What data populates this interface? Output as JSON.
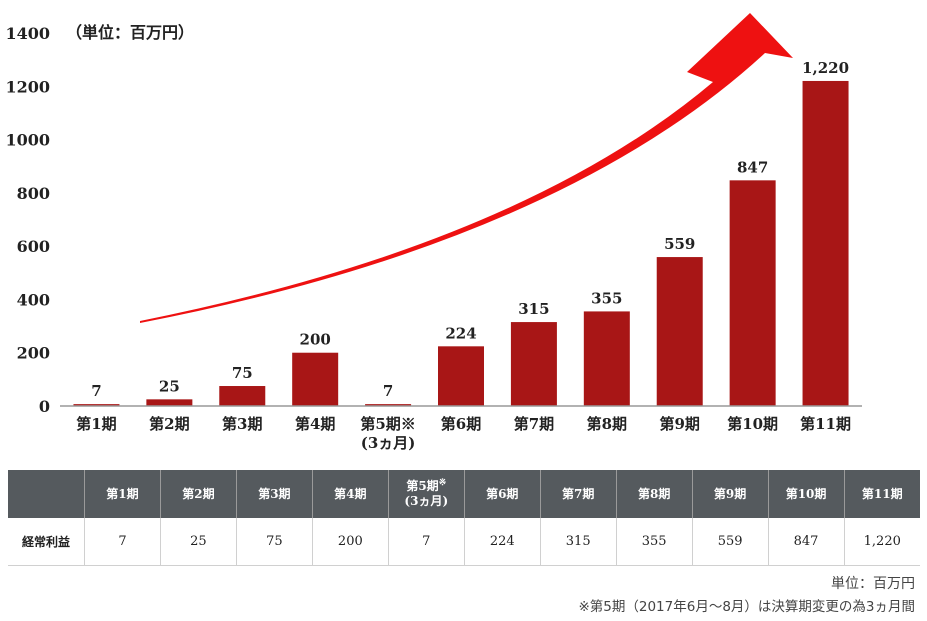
{
  "chart_data": {
    "type": "bar",
    "unit_label": "（単位：百万円）",
    "categories": [
      "第1期",
      "第2期",
      "第3期",
      "第4期",
      "第5期※\n(3ヵ月)",
      "第6期",
      "第7期",
      "第8期",
      "第9期",
      "第10期",
      "第11期"
    ],
    "values": [
      7,
      25,
      75,
      200,
      7,
      224,
      315,
      355,
      559,
      847,
      1220
    ],
    "value_labels": [
      "7",
      "25",
      "75",
      "200",
      "7",
      "224",
      "315",
      "355",
      "559",
      "847",
      "1,220"
    ],
    "yticks": [
      "0",
      "200",
      "400",
      "600",
      "800",
      "1000",
      "1200",
      "1400"
    ],
    "ylim": [
      0,
      1400
    ],
    "colors": {
      "bar": "#a81616",
      "arrow": "#ee1111",
      "axis": "#999999"
    }
  },
  "table": {
    "headers": [
      "",
      "第1期",
      "第2期",
      "第3期",
      "第4期",
      "第5期※\n(3ヵ月)",
      "第6期",
      "第7期",
      "第8期",
      "第9期",
      "第10期",
      "第11期"
    ],
    "row_label": "経常利益",
    "values": [
      "7",
      "25",
      "75",
      "200",
      "7",
      "224",
      "315",
      "355",
      "559",
      "847",
      "1,220"
    ]
  },
  "footer": {
    "unit": "単位：百万円",
    "note": "※第5期（2017年6月～8月）は決算期変更の為3ヵ月間"
  }
}
